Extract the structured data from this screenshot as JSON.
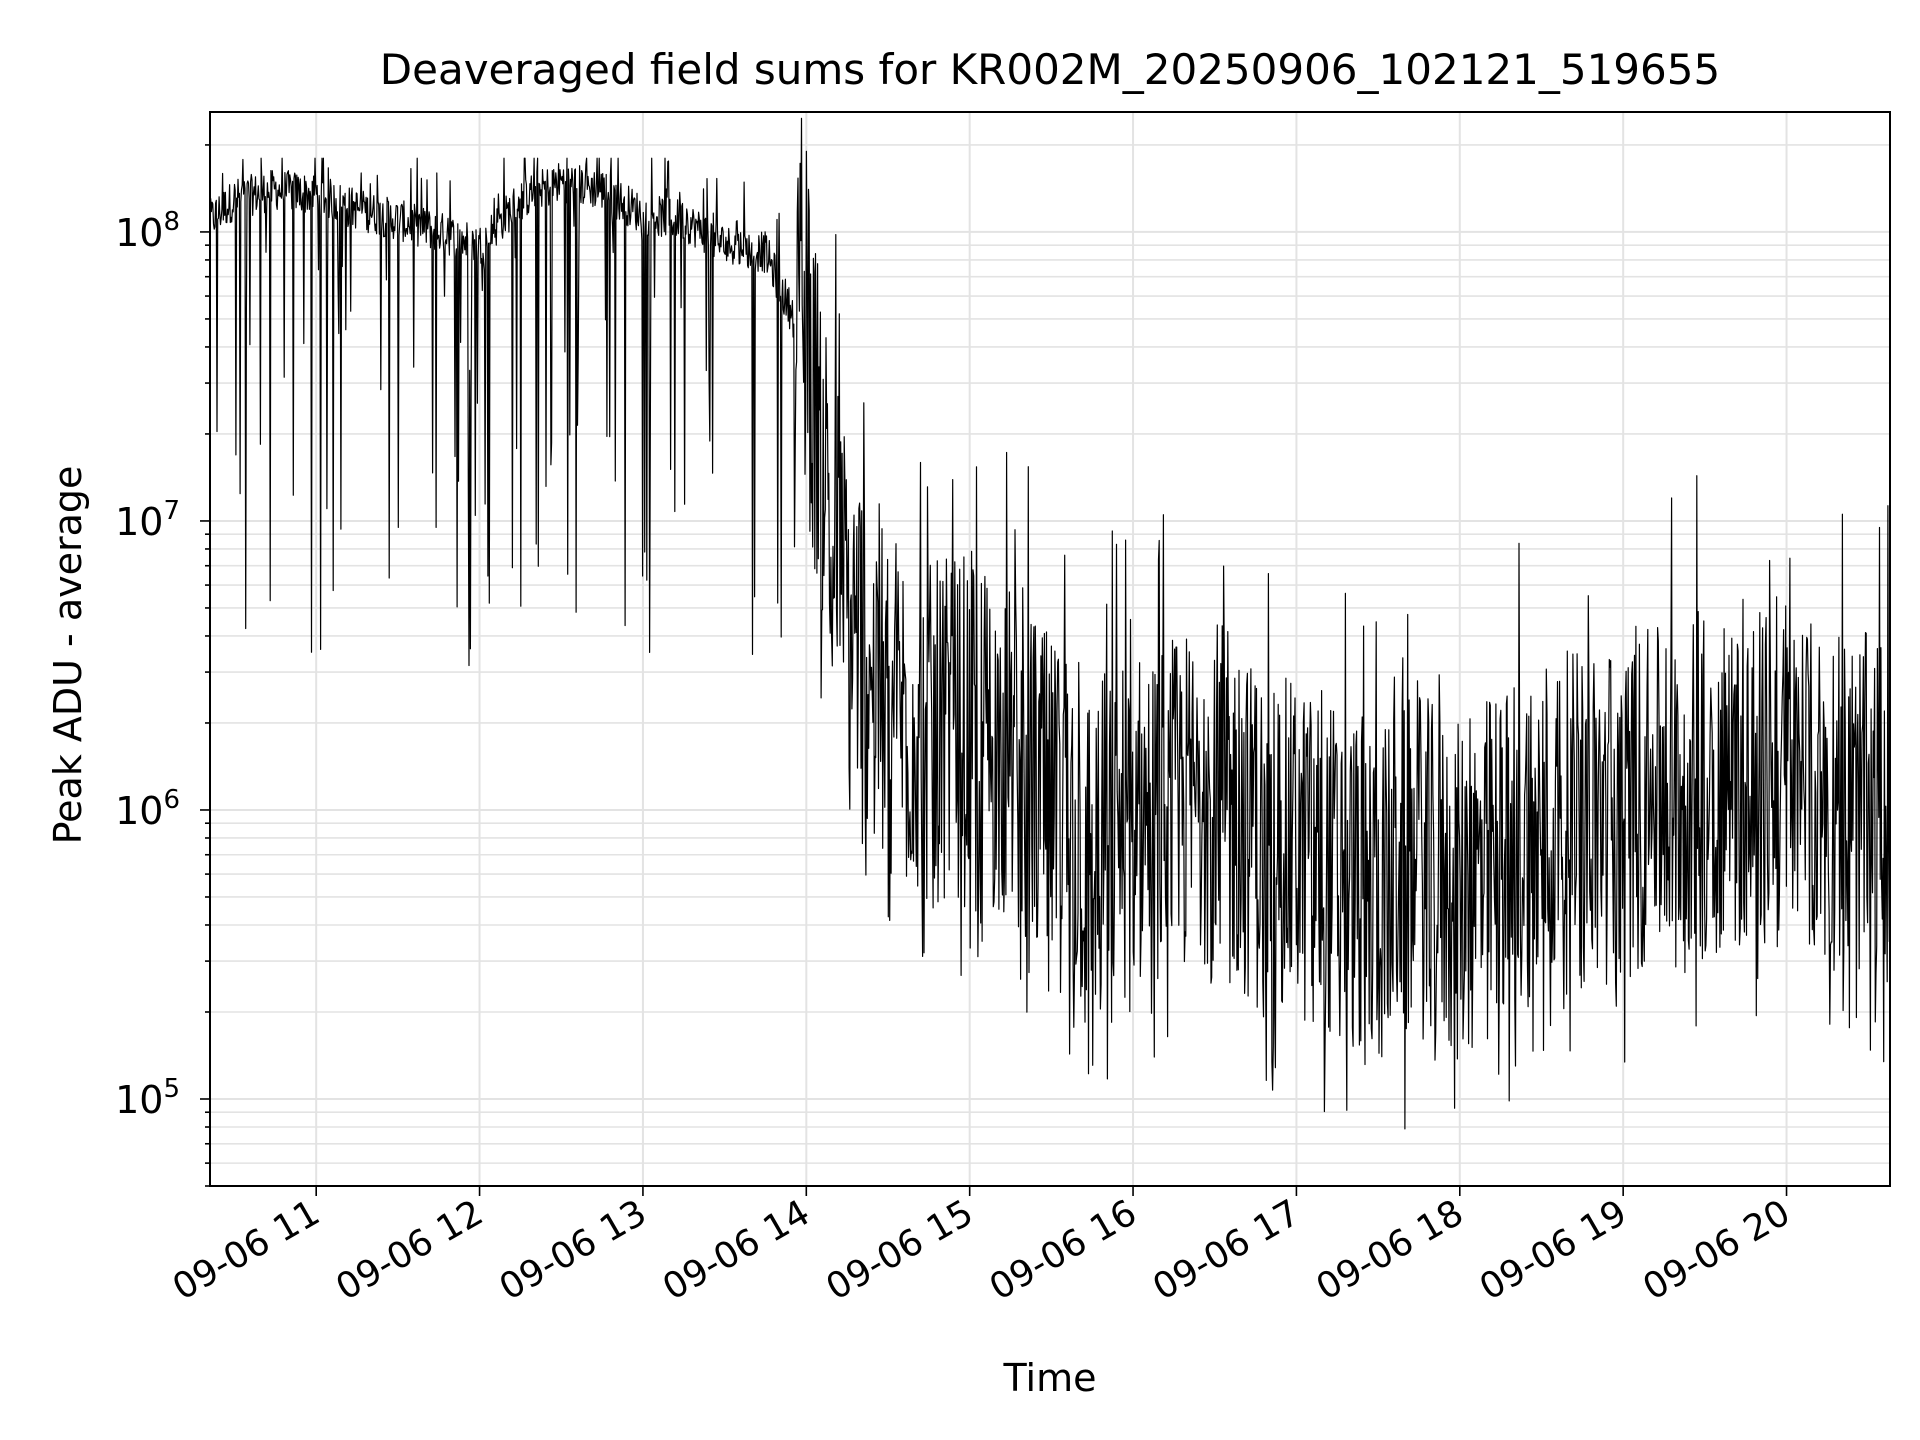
{
  "chart_data": {
    "type": "line",
    "title": "Deaveraged field sums for KR002M_20250906_102121_519655",
    "xlabel": "Time",
    "ylabel": "Peak ADU - average",
    "y_scale": "log",
    "ylim": [
      50000,
      260000000
    ],
    "xlim": [
      "09-06 10:21",
      "09-06 20:38"
    ],
    "grid": true,
    "x_tick_labels": [
      "09-06 11",
      "09-06 12",
      "09-06 13",
      "09-06 14",
      "09-06 15",
      "09-06 16",
      "09-06 17",
      "09-06 18",
      "09-06 19",
      "09-06 20"
    ],
    "y_tick_labels": [
      {
        "value": 100000,
        "base": "10",
        "exp": "5"
      },
      {
        "value": 1000000,
        "base": "10",
        "exp": "6"
      },
      {
        "value": 10000000,
        "base": "10",
        "exp": "7"
      },
      {
        "value": 100000000,
        "base": "10",
        "exp": "8"
      }
    ],
    "series": [
      {
        "color": "#000000",
        "x": [
          "09-06 10:21",
          "09-06 10:30",
          "09-06 10:45",
          "09-06 11:00",
          "09-06 11:15",
          "09-06 11:30",
          "09-06 11:45",
          "09-06 12:00",
          "09-06 12:15",
          "09-06 12:30",
          "09-06 12:45",
          "09-06 13:00",
          "09-06 13:15",
          "09-06 13:30",
          "09-06 13:45",
          "09-06 14:00",
          "09-06 14:15",
          "09-06 14:30",
          "09-06 14:45",
          "09-06 15:00",
          "09-06 15:15",
          "09-06 15:30",
          "09-06 15:45",
          "09-06 16:00",
          "09-06 16:15",
          "09-06 16:30",
          "09-06 16:45",
          "09-06 17:00",
          "09-06 17:15",
          "09-06 17:30",
          "09-06 17:45",
          "09-06 18:00",
          "09-06 18:15",
          "09-06 18:30",
          "09-06 18:45",
          "09-06 19:00",
          "09-06 19:15",
          "09-06 19:30",
          "09-06 19:45",
          "09-06 20:00",
          "09-06 20:15",
          "09-06 20:38"
        ],
        "y": [
          110000000,
          130000000,
          140000000,
          135000000,
          120000000,
          110000000,
          100000000,
          90000000,
          130000000,
          150000000,
          140000000,
          115000000,
          110000000,
          90000000,
          85000000,
          40000000,
          5000000,
          2500000,
          1800000,
          2000000,
          1500000,
          1000000,
          700000,
          900000,
          1000000,
          1200000,
          800000,
          700000,
          600000,
          500000,
          650000,
          500000,
          700000,
          900000,
          900000,
          1000000,
          1100000,
          1200000,
          1300000,
          1200000,
          1100000,
          1000000
        ]
      }
    ]
  }
}
